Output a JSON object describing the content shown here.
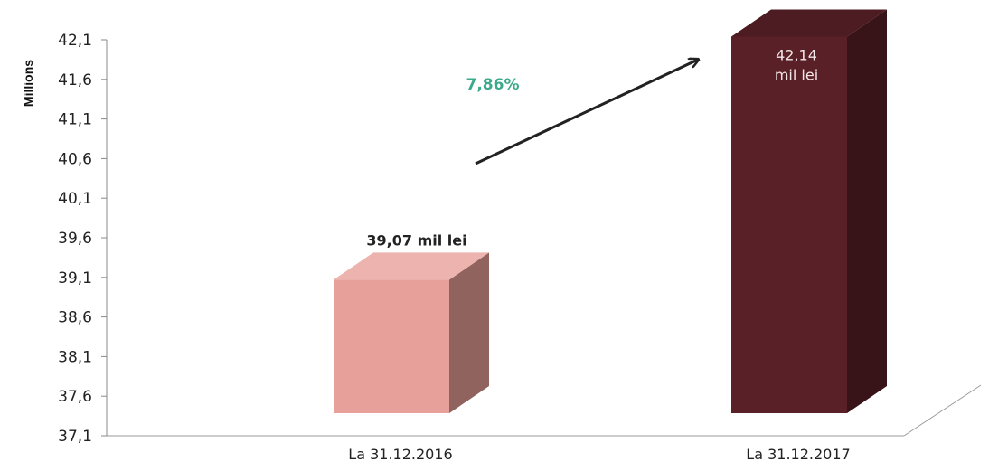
{
  "chart_data": {
    "type": "bar",
    "title": "",
    "xlabel": "",
    "ylabel": "Millions",
    "ylim": [
      37.1,
      42.1
    ],
    "yticks": [
      "42,1",
      "41,6",
      "41,1",
      "40,6",
      "40,1",
      "39,6",
      "39,1",
      "38,6",
      "38,1",
      "37,6",
      "37,1"
    ],
    "categories": [
      "La 31.12.2016",
      "La 31.12.2017"
    ],
    "values": [
      39.07,
      42.14
    ],
    "data_labels": [
      "39,07 mil lei",
      "42,14\nmil lei"
    ],
    "bar_colors": [
      "#e8a09a",
      "#5a2028"
    ],
    "growth_label": "7,86%",
    "growth_color": "#3aaa8a",
    "style": "3d-column",
    "grid": false,
    "legend": "none"
  }
}
